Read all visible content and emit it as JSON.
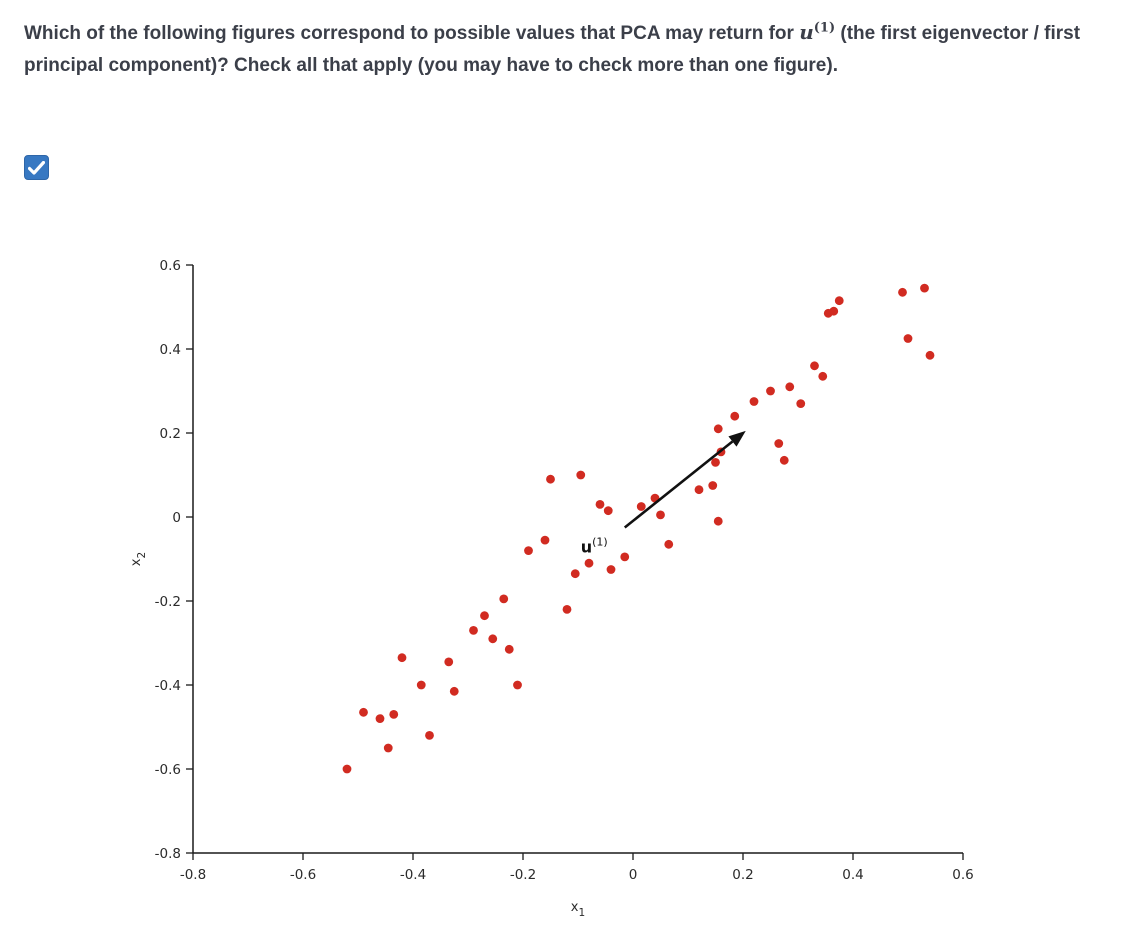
{
  "question": {
    "before": "Which of the following figures correspond to possible values that PCA may return for ",
    "math_var": "u",
    "math_sup": "(1)",
    "after": " (the first eigenvector / first principal component)? Check all that apply (you may have to check more than one figure)."
  },
  "checkbox": {
    "checked": true,
    "fill_color": "#3778c2",
    "check_icon": "checkmark-icon"
  },
  "chart_data": {
    "type": "scatter",
    "title": "",
    "xlabel": "x",
    "xlabel_sub": "1",
    "ylabel": "x",
    "ylabel_sub": "2",
    "xlim": [
      -0.8,
      0.6
    ],
    "ylim": [
      -0.8,
      0.6
    ],
    "x_ticks": [
      -0.8,
      -0.6,
      -0.4,
      -0.2,
      0,
      0.2,
      0.4,
      0.6
    ],
    "y_ticks": [
      -0.8,
      -0.6,
      -0.4,
      -0.2,
      0,
      0.2,
      0.4,
      0.6
    ],
    "grid": false,
    "legend": "none",
    "point_color": "#d12b21",
    "axis_color": "#1a1a1a",
    "points": [
      [
        -0.52,
        -0.6
      ],
      [
        -0.49,
        -0.465
      ],
      [
        -0.46,
        -0.48
      ],
      [
        -0.445,
        -0.55
      ],
      [
        -0.435,
        -0.47
      ],
      [
        -0.42,
        -0.335
      ],
      [
        -0.385,
        -0.4
      ],
      [
        -0.37,
        -0.52
      ],
      [
        -0.335,
        -0.345
      ],
      [
        -0.325,
        -0.415
      ],
      [
        -0.29,
        -0.27
      ],
      [
        -0.27,
        -0.235
      ],
      [
        -0.255,
        -0.29
      ],
      [
        -0.235,
        -0.195
      ],
      [
        -0.225,
        -0.315
      ],
      [
        -0.21,
        -0.4
      ],
      [
        -0.19,
        -0.08
      ],
      [
        -0.16,
        -0.055
      ],
      [
        -0.15,
        0.09
      ],
      [
        -0.12,
        -0.22
      ],
      [
        -0.105,
        -0.135
      ],
      [
        -0.095,
        0.1
      ],
      [
        -0.08,
        -0.11
      ],
      [
        -0.06,
        0.03
      ],
      [
        -0.045,
        0.015
      ],
      [
        -0.04,
        -0.125
      ],
      [
        -0.015,
        -0.095
      ],
      [
        0.015,
        0.025
      ],
      [
        0.04,
        0.045
      ],
      [
        0.05,
        0.005
      ],
      [
        0.065,
        -0.065
      ],
      [
        0.12,
        0.065
      ],
      [
        0.145,
        0.075
      ],
      [
        0.15,
        0.13
      ],
      [
        0.155,
        -0.01
      ],
      [
        0.155,
        0.21
      ],
      [
        0.16,
        0.155
      ],
      [
        0.185,
        0.24
      ],
      [
        0.22,
        0.275
      ],
      [
        0.25,
        0.3
      ],
      [
        0.265,
        0.175
      ],
      [
        0.275,
        0.135
      ],
      [
        0.285,
        0.31
      ],
      [
        0.305,
        0.27
      ],
      [
        0.33,
        0.36
      ],
      [
        0.345,
        0.335
      ],
      [
        0.355,
        0.485
      ],
      [
        0.365,
        0.49
      ],
      [
        0.375,
        0.515
      ],
      [
        0.49,
        0.535
      ],
      [
        0.5,
        0.425
      ],
      [
        0.53,
        0.545
      ],
      [
        0.54,
        0.385
      ]
    ],
    "arrow": {
      "from": [
        -0.015,
        -0.025
      ],
      "to": [
        0.205,
        0.205
      ],
      "color": "#111111",
      "label_var": "u",
      "label_sup": "(1)",
      "label_pos": [
        -0.095,
        -0.085
      ]
    }
  }
}
